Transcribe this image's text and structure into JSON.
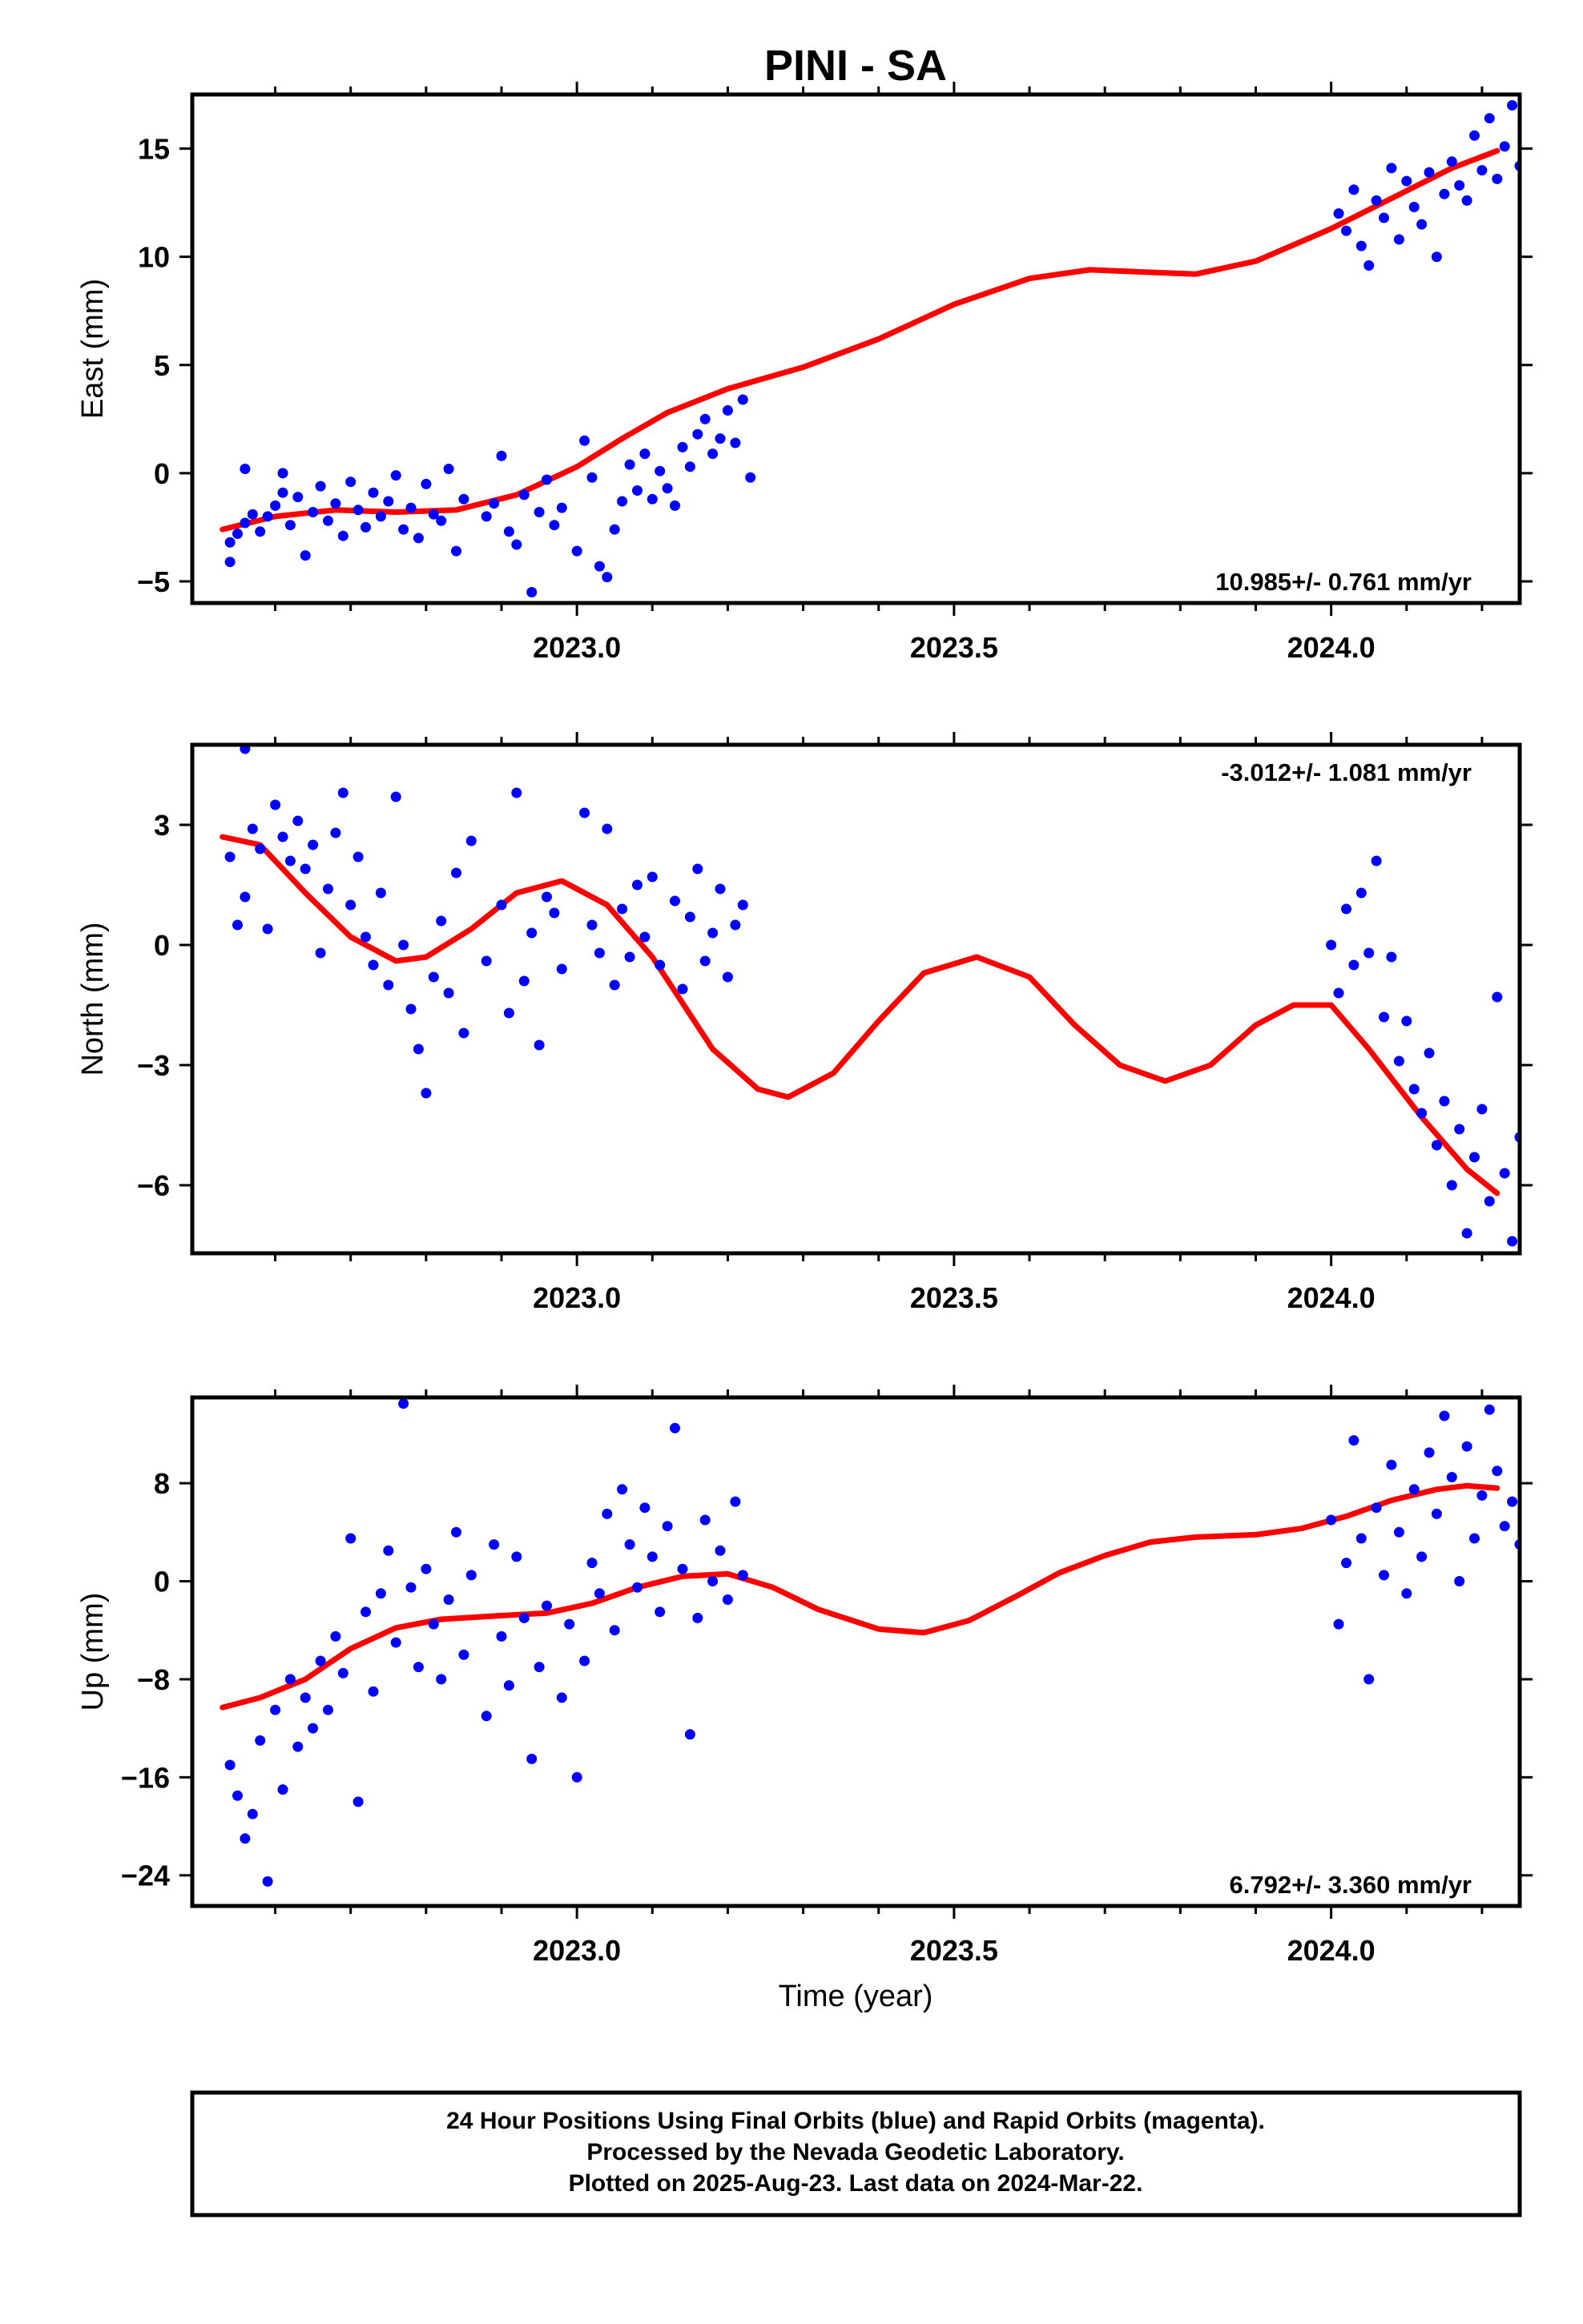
{
  "figure": {
    "title": "PINI - SA",
    "x_axis_label": "Time (year)",
    "x_ticks": [
      "2023.0",
      "2023.5",
      "2024.0"
    ],
    "footer_lines": [
      "24 Hour Positions Using Final Orbits (blue) and Rapid Orbits (magenta).",
      "Processed by the Nevada Geodetic Laboratory.",
      "Plotted on 2025-Aug-23. Last data on 2024-Mar-22."
    ]
  },
  "colors": {
    "points": "#0000ff",
    "fit": "#ff0000",
    "frame": "#000000"
  },
  "chart_data": [
    {
      "type": "scatter",
      "ylabel": "East (mm)",
      "rate_label": "10.985+/- 0.761 mm/yr",
      "xlim": [
        2022.49,
        2024.25
      ],
      "ylim": [
        -6.0,
        17.5
      ],
      "yticks": [
        -5,
        0,
        5,
        10,
        15
      ],
      "grid": false,
      "fit_curve": {
        "x": [
          2022.53,
          2022.6,
          2022.68,
          2022.76,
          2022.84,
          2022.92,
          2023.0,
          2023.06,
          2023.12,
          2023.2,
          2023.3,
          2023.4,
          2023.5,
          2023.6,
          2023.68,
          2023.75,
          2023.82,
          2023.9,
          2024.0,
          2024.08,
          2024.16,
          2024.22
        ],
        "y": [
          -2.6,
          -2.0,
          -1.7,
          -1.8,
          -1.7,
          -1.0,
          0.3,
          1.6,
          2.8,
          3.9,
          4.9,
          6.2,
          7.8,
          9.0,
          9.4,
          9.3,
          9.2,
          9.8,
          11.3,
          12.7,
          14.1,
          14.9
        ]
      },
      "points": [
        [
          2022.54,
          -4.1
        ],
        [
          2022.54,
          -3.2
        ],
        [
          2022.55,
          -2.8
        ],
        [
          2022.56,
          -2.3
        ],
        [
          2022.56,
          0.2
        ],
        [
          2022.57,
          -1.9
        ],
        [
          2022.58,
          -2.7
        ],
        [
          2022.59,
          -2.0
        ],
        [
          2022.6,
          -1.5
        ],
        [
          2022.61,
          -0.9
        ],
        [
          2022.61,
          0.0
        ],
        [
          2022.62,
          -2.4
        ],
        [
          2022.63,
          -1.1
        ],
        [
          2022.64,
          -3.8
        ],
        [
          2022.65,
          -1.8
        ],
        [
          2022.66,
          -0.6
        ],
        [
          2022.67,
          -2.2
        ],
        [
          2022.68,
          -1.4
        ],
        [
          2022.69,
          -2.9
        ],
        [
          2022.7,
          -0.4
        ],
        [
          2022.71,
          -1.7
        ],
        [
          2022.72,
          -2.5
        ],
        [
          2022.73,
          -0.9
        ],
        [
          2022.74,
          -2.0
        ],
        [
          2022.75,
          -1.3
        ],
        [
          2022.76,
          -0.1
        ],
        [
          2022.77,
          -2.6
        ],
        [
          2022.78,
          -1.6
        ],
        [
          2022.79,
          -3.0
        ],
        [
          2022.8,
          -0.5
        ],
        [
          2022.81,
          -1.9
        ],
        [
          2022.82,
          -2.2
        ],
        [
          2022.83,
          0.2
        ],
        [
          2022.84,
          -3.6
        ],
        [
          2022.85,
          -1.2
        ],
        [
          2022.88,
          -2.0
        ],
        [
          2022.89,
          -1.4
        ],
        [
          2022.9,
          0.8
        ],
        [
          2022.91,
          -2.7
        ],
        [
          2022.92,
          -3.3
        ],
        [
          2022.93,
          -1.0
        ],
        [
          2022.94,
          -5.5
        ],
        [
          2022.95,
          -1.8
        ],
        [
          2022.96,
          -0.3
        ],
        [
          2022.97,
          -2.4
        ],
        [
          2022.98,
          -1.6
        ],
        [
          2023.0,
          -3.6
        ],
        [
          2023.01,
          1.5
        ],
        [
          2023.02,
          -0.2
        ],
        [
          2023.03,
          -4.3
        ],
        [
          2023.04,
          -4.8
        ],
        [
          2023.05,
          -2.6
        ],
        [
          2023.06,
          -1.3
        ],
        [
          2023.07,
          0.4
        ],
        [
          2023.08,
          -0.8
        ],
        [
          2023.09,
          0.9
        ],
        [
          2023.1,
          -1.2
        ],
        [
          2023.11,
          0.1
        ],
        [
          2023.12,
          -0.7
        ],
        [
          2023.13,
          -1.5
        ],
        [
          2023.14,
          1.2
        ],
        [
          2023.15,
          0.3
        ],
        [
          2023.16,
          1.8
        ],
        [
          2023.17,
          2.5
        ],
        [
          2023.18,
          0.9
        ],
        [
          2023.19,
          1.6
        ],
        [
          2023.2,
          2.9
        ],
        [
          2023.21,
          1.4
        ],
        [
          2023.22,
          3.4
        ],
        [
          2023.23,
          -0.2
        ],
        [
          2024.01,
          12.0
        ],
        [
          2024.02,
          11.2
        ],
        [
          2024.03,
          13.1
        ],
        [
          2024.04,
          10.5
        ],
        [
          2024.05,
          9.6
        ],
        [
          2024.06,
          12.6
        ],
        [
          2024.07,
          11.8
        ],
        [
          2024.08,
          14.1
        ],
        [
          2024.09,
          10.8
        ],
        [
          2024.1,
          13.5
        ],
        [
          2024.11,
          12.3
        ],
        [
          2024.12,
          11.5
        ],
        [
          2024.13,
          13.9
        ],
        [
          2024.14,
          10.0
        ],
        [
          2024.15,
          12.9
        ],
        [
          2024.16,
          14.4
        ],
        [
          2024.17,
          13.3
        ],
        [
          2024.18,
          12.6
        ],
        [
          2024.19,
          15.6
        ],
        [
          2024.2,
          14.0
        ],
        [
          2024.21,
          16.4
        ],
        [
          2024.22,
          13.6
        ],
        [
          2024.23,
          15.1
        ],
        [
          2024.24,
          17.0
        ],
        [
          2024.25,
          14.2
        ]
      ]
    },
    {
      "type": "scatter",
      "ylabel": "North (mm)",
      "rate_label": "-3.012+/- 1.081 mm/yr",
      "xlim": [
        2022.49,
        2024.25
      ],
      "ylim": [
        -7.7,
        5.0
      ],
      "yticks": [
        -6,
        -3,
        0,
        3
      ],
      "grid": false,
      "fit_curve": {
        "x": [
          2022.53,
          2022.58,
          2022.64,
          2022.7,
          2022.76,
          2022.8,
          2022.86,
          2022.92,
          2022.98,
          2023.04,
          2023.1,
          2023.18,
          2023.24,
          2023.28,
          2023.34,
          2023.4,
          2023.46,
          2023.53,
          2023.6,
          2023.66,
          2023.72,
          2023.78,
          2023.84,
          2023.9,
          2023.95,
          2024.0,
          2024.05,
          2024.12,
          2024.18,
          2024.22
        ],
        "y": [
          2.7,
          2.5,
          1.3,
          0.2,
          -0.4,
          -0.3,
          0.4,
          1.3,
          1.6,
          1.0,
          -0.3,
          -2.6,
          -3.6,
          -3.8,
          -3.2,
          -1.9,
          -0.7,
          -0.3,
          -0.8,
          -2.0,
          -3.0,
          -3.4,
          -3.0,
          -2.0,
          -1.5,
          -1.5,
          -2.6,
          -4.3,
          -5.6,
          -6.2
        ]
      },
      "points": [
        [
          2022.54,
          2.2
        ],
        [
          2022.55,
          0.5
        ],
        [
          2022.56,
          1.2
        ],
        [
          2022.56,
          4.9
        ],
        [
          2022.57,
          2.9
        ],
        [
          2022.58,
          2.4
        ],
        [
          2022.59,
          0.4
        ],
        [
          2022.6,
          3.5
        ],
        [
          2022.61,
          2.7
        ],
        [
          2022.62,
          2.1
        ],
        [
          2022.63,
          3.1
        ],
        [
          2022.64,
          1.9
        ],
        [
          2022.65,
          2.5
        ],
        [
          2022.66,
          -0.2
        ],
        [
          2022.67,
          1.4
        ],
        [
          2022.68,
          2.8
        ],
        [
          2022.69,
          3.8
        ],
        [
          2022.7,
          1.0
        ],
        [
          2022.71,
          2.2
        ],
        [
          2022.72,
          0.2
        ],
        [
          2022.73,
          -0.5
        ],
        [
          2022.74,
          1.3
        ],
        [
          2022.75,
          -1.0
        ],
        [
          2022.76,
          3.7
        ],
        [
          2022.77,
          0.0
        ],
        [
          2022.78,
          -1.6
        ],
        [
          2022.79,
          -2.6
        ],
        [
          2022.8,
          -3.7
        ],
        [
          2022.81,
          -0.8
        ],
        [
          2022.82,
          0.6
        ],
        [
          2022.83,
          -1.2
        ],
        [
          2022.84,
          1.8
        ],
        [
          2022.85,
          -2.2
        ],
        [
          2022.86,
          2.6
        ],
        [
          2022.88,
          -0.4
        ],
        [
          2022.9,
          1.0
        ],
        [
          2022.91,
          -1.7
        ],
        [
          2022.92,
          3.8
        ],
        [
          2022.93,
          -0.9
        ],
        [
          2022.94,
          0.3
        ],
        [
          2022.95,
          -2.5
        ],
        [
          2022.96,
          1.2
        ],
        [
          2022.97,
          0.8
        ],
        [
          2022.98,
          -0.6
        ],
        [
          2023.01,
          3.3
        ],
        [
          2023.02,
          0.5
        ],
        [
          2023.03,
          -0.2
        ],
        [
          2023.04,
          2.9
        ],
        [
          2023.05,
          -1.0
        ],
        [
          2023.06,
          0.9
        ],
        [
          2023.07,
          -0.3
        ],
        [
          2023.08,
          1.5
        ],
        [
          2023.09,
          0.2
        ],
        [
          2023.1,
          1.7
        ],
        [
          2023.11,
          -0.5
        ],
        [
          2023.13,
          1.1
        ],
        [
          2023.14,
          -1.1
        ],
        [
          2023.15,
          0.7
        ],
        [
          2023.16,
          1.9
        ],
        [
          2023.17,
          -0.4
        ],
        [
          2023.18,
          0.3
        ],
        [
          2023.19,
          1.4
        ],
        [
          2023.2,
          -0.8
        ],
        [
          2023.21,
          0.5
        ],
        [
          2023.22,
          1.0
        ],
        [
          2024.0,
          0.0
        ],
        [
          2024.01,
          -1.2
        ],
        [
          2024.02,
          0.9
        ],
        [
          2024.03,
          -0.5
        ],
        [
          2024.04,
          1.3
        ],
        [
          2024.05,
          -0.2
        ],
        [
          2024.06,
          2.1
        ],
        [
          2024.07,
          -1.8
        ],
        [
          2024.08,
          -0.3
        ],
        [
          2024.09,
          -2.9
        ],
        [
          2024.1,
          -1.9
        ],
        [
          2024.11,
          -3.6
        ],
        [
          2024.12,
          -4.2
        ],
        [
          2024.13,
          -2.7
        ],
        [
          2024.14,
          -5.0
        ],
        [
          2024.15,
          -3.9
        ],
        [
          2024.16,
          -6.0
        ],
        [
          2024.17,
          -4.6
        ],
        [
          2024.18,
          -7.2
        ],
        [
          2024.19,
          -5.3
        ],
        [
          2024.2,
          -4.1
        ],
        [
          2024.21,
          -6.4
        ],
        [
          2024.22,
          -1.3
        ],
        [
          2024.23,
          -5.7
        ],
        [
          2024.24,
          -7.4
        ],
        [
          2024.25,
          -4.8
        ]
      ]
    },
    {
      "type": "scatter",
      "ylabel": "Up (mm)",
      "rate_label": "6.792+/- 3.360 mm/yr",
      "xlim": [
        2022.49,
        2024.25
      ],
      "ylim": [
        -26.5,
        15.0
      ],
      "yticks": [
        -24,
        -16,
        -8,
        0,
        8
      ],
      "grid": false,
      "fit_curve": {
        "x": [
          2022.53,
          2022.58,
          2022.64,
          2022.7,
          2022.76,
          2022.82,
          2022.9,
          2022.96,
          2023.02,
          2023.08,
          2023.14,
          2023.2,
          2023.26,
          2023.32,
          2023.4,
          2023.46,
          2023.52,
          2023.58,
          2023.64,
          2023.7,
          2023.76,
          2023.82,
          2023.9,
          2023.96,
          2024.02,
          2024.08,
          2024.14,
          2024.18,
          2024.22
        ],
        "y": [
          -10.3,
          -9.5,
          -8.0,
          -5.5,
          -3.8,
          -3.1,
          -2.8,
          -2.6,
          -1.8,
          -0.5,
          0.4,
          0.6,
          -0.5,
          -2.3,
          -3.9,
          -4.2,
          -3.2,
          -1.3,
          0.7,
          2.1,
          3.2,
          3.6,
          3.8,
          4.3,
          5.3,
          6.6,
          7.5,
          7.8,
          7.6
        ]
      },
      "points": [
        [
          2022.54,
          -15.0
        ],
        [
          2022.55,
          -17.5
        ],
        [
          2022.56,
          -21.0
        ],
        [
          2022.57,
          -19.0
        ],
        [
          2022.58,
          -13.0
        ],
        [
          2022.59,
          -24.5
        ],
        [
          2022.6,
          -10.5
        ],
        [
          2022.61,
          -17.0
        ],
        [
          2022.62,
          -8.0
        ],
        [
          2022.63,
          -13.5
        ],
        [
          2022.64,
          -9.5
        ],
        [
          2022.65,
          -12.0
        ],
        [
          2022.66,
          -6.5
        ],
        [
          2022.67,
          -10.5
        ],
        [
          2022.68,
          -4.5
        ],
        [
          2022.69,
          -7.5
        ],
        [
          2022.7,
          3.5
        ],
        [
          2022.71,
          -18.0
        ],
        [
          2022.72,
          -2.5
        ],
        [
          2022.73,
          -9.0
        ],
        [
          2022.74,
          -1.0
        ],
        [
          2022.75,
          2.5
        ],
        [
          2022.76,
          -5.0
        ],
        [
          2022.77,
          14.5
        ],
        [
          2022.78,
          -0.5
        ],
        [
          2022.79,
          -7.0
        ],
        [
          2022.8,
          1.0
        ],
        [
          2022.81,
          -3.5
        ],
        [
          2022.82,
          -8.0
        ],
        [
          2022.83,
          -1.5
        ],
        [
          2022.84,
          4.0
        ],
        [
          2022.85,
          -6.0
        ],
        [
          2022.86,
          0.5
        ],
        [
          2022.88,
          -11.0
        ],
        [
          2022.89,
          3.0
        ],
        [
          2022.9,
          -4.5
        ],
        [
          2022.91,
          -8.5
        ],
        [
          2022.92,
          2.0
        ],
        [
          2022.93,
          -3.0
        ],
        [
          2022.94,
          -14.5
        ],
        [
          2022.95,
          -7.0
        ],
        [
          2022.96,
          -2.0
        ],
        [
          2022.98,
          -9.5
        ],
        [
          2022.99,
          -3.5
        ],
        [
          2023.0,
          -16.0
        ],
        [
          2023.01,
          -6.5
        ],
        [
          2023.02,
          1.5
        ],
        [
          2023.03,
          -1.0
        ],
        [
          2023.04,
          5.5
        ],
        [
          2023.05,
          -4.0
        ],
        [
          2023.06,
          7.5
        ],
        [
          2023.07,
          3.0
        ],
        [
          2023.08,
          -0.5
        ],
        [
          2023.09,
          6.0
        ],
        [
          2023.1,
          2.0
        ],
        [
          2023.11,
          -2.5
        ],
        [
          2023.12,
          4.5
        ],
        [
          2023.13,
          12.5
        ],
        [
          2023.14,
          1.0
        ],
        [
          2023.15,
          -12.5
        ],
        [
          2023.16,
          -3.0
        ],
        [
          2023.17,
          5.0
        ],
        [
          2023.18,
          0.0
        ],
        [
          2023.19,
          2.5
        ],
        [
          2023.2,
          -1.5
        ],
        [
          2023.21,
          6.5
        ],
        [
          2023.22,
          0.5
        ],
        [
          2024.0,
          5.0
        ],
        [
          2024.01,
          -3.5
        ],
        [
          2024.02,
          1.5
        ],
        [
          2024.03,
          11.5
        ],
        [
          2024.04,
          3.5
        ],
        [
          2024.05,
          -8.0
        ],
        [
          2024.06,
          6.0
        ],
        [
          2024.07,
          0.5
        ],
        [
          2024.08,
          9.5
        ],
        [
          2024.09,
          4.0
        ],
        [
          2024.1,
          -1.0
        ],
        [
          2024.11,
          7.5
        ],
        [
          2024.12,
          2.0
        ],
        [
          2024.13,
          10.5
        ],
        [
          2024.14,
          5.5
        ],
        [
          2024.15,
          13.5
        ],
        [
          2024.16,
          8.5
        ],
        [
          2024.17,
          0.0
        ],
        [
          2024.18,
          11.0
        ],
        [
          2024.19,
          3.5
        ],
        [
          2024.2,
          7.0
        ],
        [
          2024.21,
          14.0
        ],
        [
          2024.22,
          9.0
        ],
        [
          2024.23,
          4.5
        ],
        [
          2024.24,
          6.5
        ],
        [
          2024.25,
          3.0
        ]
      ]
    }
  ]
}
